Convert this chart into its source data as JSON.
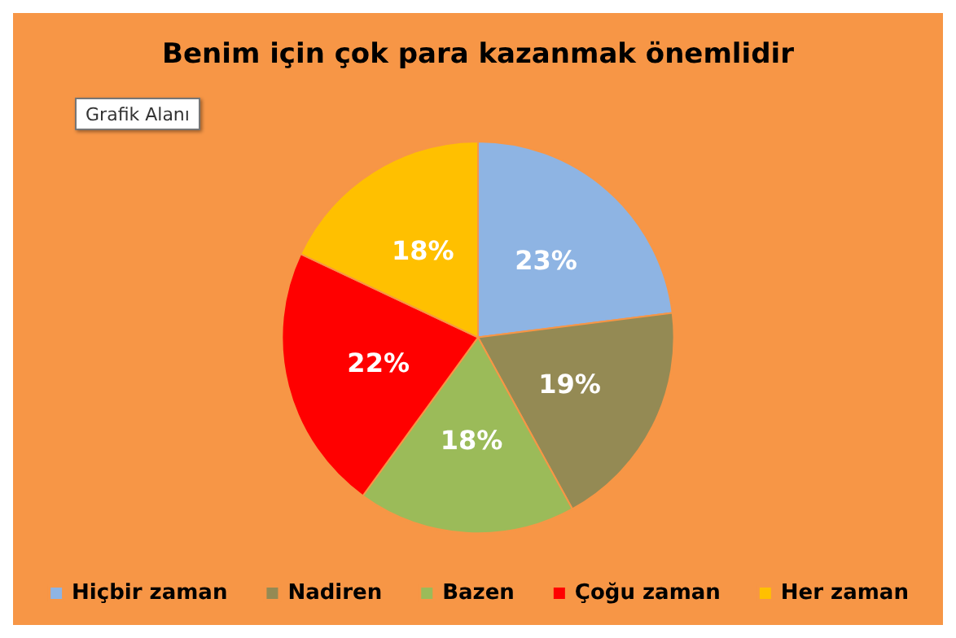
{
  "chart_data": {
    "type": "pie",
    "title": "Benim için çok para kazanmak önemlidir",
    "categories": [
      "Hiçbir zaman",
      "Nadiren",
      "Bazen",
      "Çoğu zaman",
      "Her zaman"
    ],
    "values": [
      23,
      19,
      18,
      22,
      18
    ],
    "value_labels": [
      "23%",
      "19%",
      "18%",
      "22%",
      "18%"
    ],
    "colors": [
      "#8eb4e3",
      "#948a54",
      "#9bbb59",
      "#ff0000",
      "#ffc000"
    ],
    "legend": "bottom",
    "annotations": [
      "Grafik Alanı"
    ]
  }
}
